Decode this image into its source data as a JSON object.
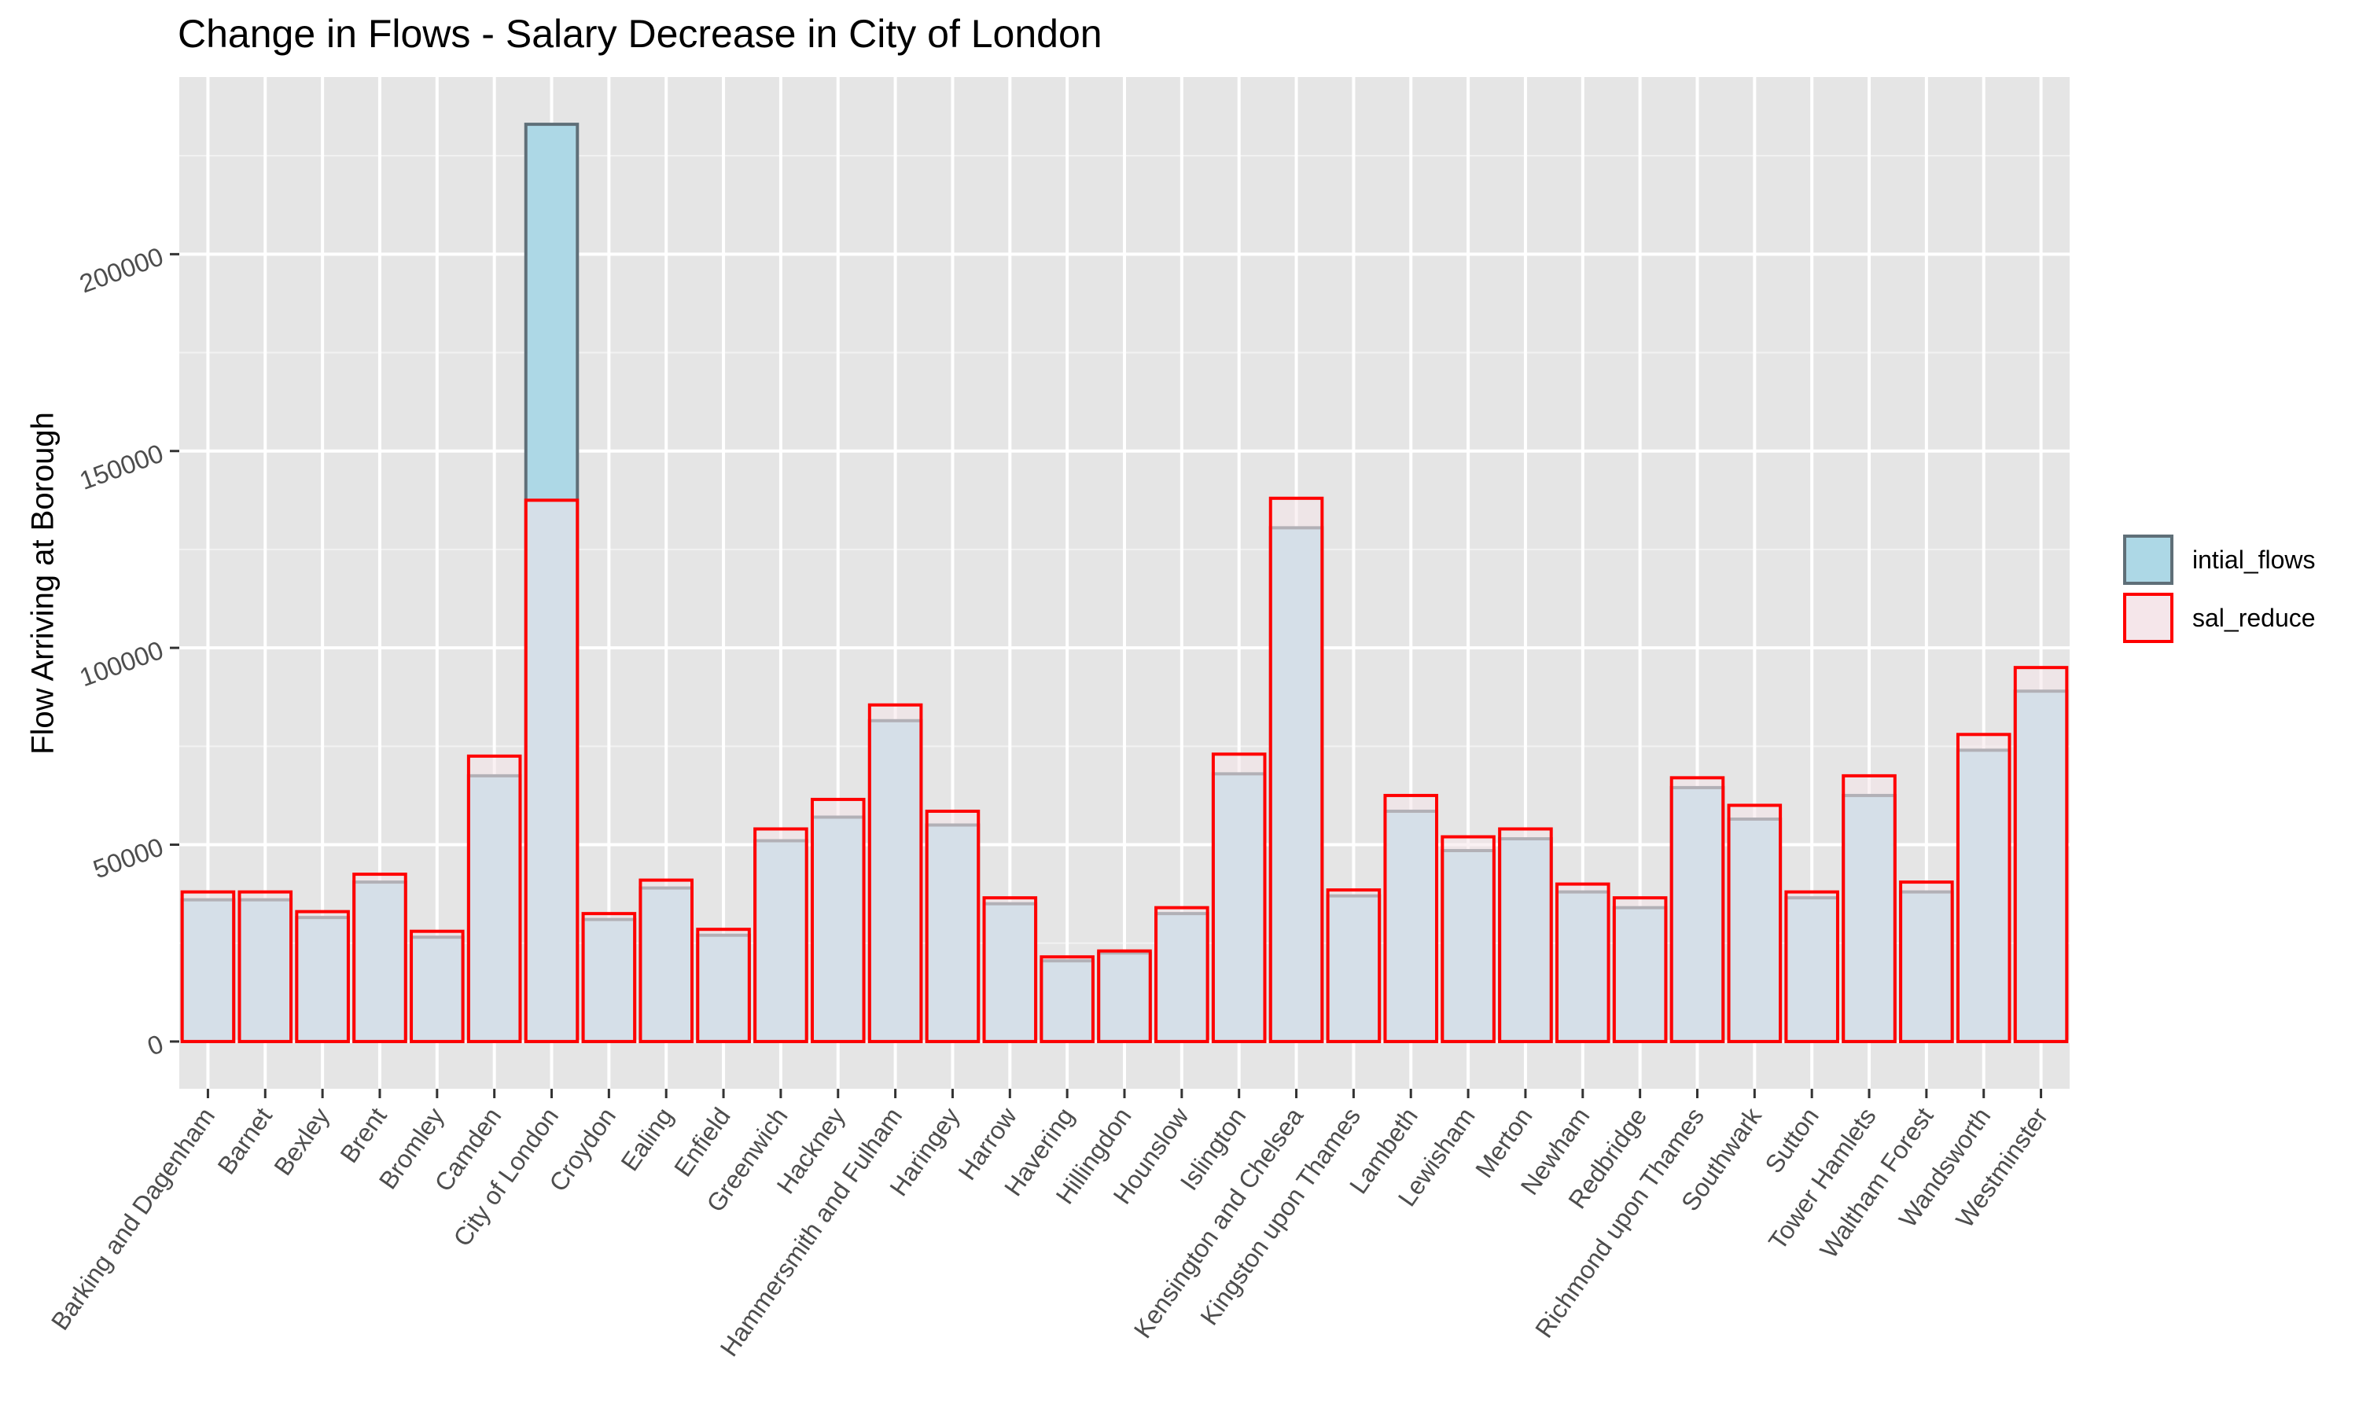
{
  "chart_data": {
    "type": "bar",
    "title": "Change in Flows - Salary Decrease in City of London",
    "xlabel": "",
    "ylabel": "Flow Arriving at Borough",
    "ylim": [
      -12000,
      245000
    ],
    "yticks": [
      0,
      50000,
      100000,
      150000,
      200000
    ],
    "ytick_labels": [
      "0",
      "50000",
      "100000",
      "150000",
      "200000"
    ],
    "grid": true,
    "legend_position": "right",
    "categories": [
      "Barking and Dagenham",
      "Barnet",
      "Bexley",
      "Brent",
      "Bromley",
      "Camden",
      "City of London",
      "Croydon",
      "Ealing",
      "Enfield",
      "Greenwich",
      "Hackney",
      "Hammersmith and Fulham",
      "Haringey",
      "Harrow",
      "Havering",
      "Hillingdon",
      "Hounslow",
      "Islington",
      "Kensington and Chelsea",
      "Kingston upon Thames",
      "Lambeth",
      "Lewisham",
      "Merton",
      "Newham",
      "Redbridge",
      "Richmond upon Thames",
      "Southwark",
      "Sutton",
      "Tower Hamlets",
      "Waltham Forest",
      "Wandsworth",
      "Westminster"
    ],
    "series": [
      {
        "name": "intial_flows",
        "fill": "#add8e6",
        "stroke": "#5f6f78",
        "values": [
          36000,
          36000,
          31500,
          40500,
          26500,
          67500,
          233000,
          31000,
          39000,
          27000,
          51000,
          57000,
          81500,
          55000,
          35000,
          20500,
          22500,
          32500,
          68000,
          130500,
          37000,
          58500,
          48500,
          51500,
          38000,
          34000,
          64500,
          56500,
          36500,
          62500,
          38000,
          74000,
          89000
        ]
      },
      {
        "name": "sal_reduce",
        "fill": "#f5e6ea",
        "stroke": "#ff0000",
        "values": [
          38000,
          38000,
          33000,
          42500,
          28000,
          72500,
          137500,
          32500,
          41000,
          28500,
          54000,
          61500,
          85500,
          58500,
          36500,
          21500,
          23000,
          34000,
          73000,
          138000,
          38500,
          62500,
          52000,
          54000,
          40000,
          36500,
          67000,
          60000,
          38000,
          67500,
          40500,
          78000,
          95000
        ]
      }
    ],
    "colors": {
      "panel_bg": "#e5e5e5",
      "grid_major": "#ffffff",
      "axis_text": "#4d4d4d"
    }
  }
}
